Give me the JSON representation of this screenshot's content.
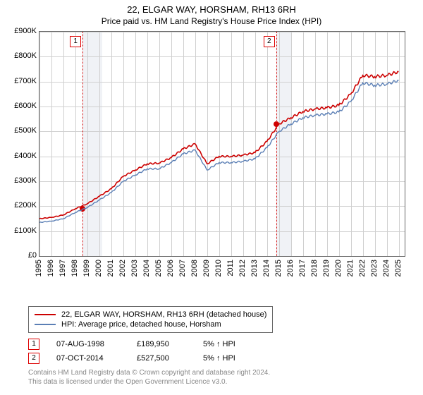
{
  "title_line1": "22, ELGAR WAY, HORSHAM, RH13 6RH",
  "title_line2": "Price paid vs. HM Land Registry's House Price Index (HPI)",
  "chart": {
    "type": "line",
    "x_years": [
      1995,
      1996,
      1997,
      1998,
      1999,
      2000,
      2001,
      2002,
      2003,
      2004,
      2005,
      2006,
      2007,
      2008,
      2009,
      2010,
      2011,
      2012,
      2013,
      2014,
      2015,
      2016,
      2017,
      2018,
      2019,
      2020,
      2021,
      2022,
      2023,
      2024,
      2025
    ],
    "x_min_year": 1995,
    "x_max_year": 2025.5,
    "ymin": 0,
    "ymax": 900000,
    "ytick_step": 100000,
    "ytick_labels": [
      "£0",
      "£100K",
      "£200K",
      "£300K",
      "£400K",
      "£500K",
      "£600K",
      "£700K",
      "£800K",
      "£900K"
    ],
    "grid_color": "#d0d0d0",
    "shade_color": "#f0f2f6",
    "border_color": "#666666",
    "shade_spans": [
      [
        1998.6,
        2000.25
      ],
      [
        2014.77,
        2016.0
      ]
    ],
    "flag_dash_color": "#d00000",
    "series": [
      {
        "name": "price_paid",
        "color": "#cc0000",
        "width": 1.6,
        "y_by_year": [
          150,
          155,
          165,
          190,
          210,
          240,
          270,
          320,
          345,
          370,
          373,
          395,
          430,
          450,
          370,
          400,
          400,
          405,
          415,
          460,
          530,
          555,
          580,
          590,
          595,
          605,
          650,
          725,
          720,
          725,
          740
        ]
      },
      {
        "name": "hpi",
        "color": "#5b7fb5",
        "width": 1.4,
        "y_by_year": [
          135,
          140,
          150,
          175,
          195,
          225,
          255,
          300,
          325,
          350,
          350,
          375,
          410,
          425,
          345,
          375,
          375,
          380,
          390,
          435,
          500,
          530,
          555,
          565,
          570,
          578,
          620,
          695,
          685,
          690,
          705
        ]
      }
    ],
    "transactions": [
      {
        "flag": "1",
        "year": 1998.6,
        "price_k": 190
      },
      {
        "flag": "2",
        "year": 2014.77,
        "price_k": 528
      }
    ],
    "marker_color": "#d00000"
  },
  "legend": {
    "row1_color": "#cc0000",
    "row1_label": "22, ELGAR WAY, HORSHAM, RH13 6RH (detached house)",
    "row2_color": "#5b7fb5",
    "row2_label": "HPI: Average price, detached house, Horsham"
  },
  "price_paid_rows": [
    {
      "flag": "1",
      "date": "07-AUG-1998",
      "price": "£189,950",
      "pct": "5% ↑ HPI"
    },
    {
      "flag": "2",
      "date": "07-OCT-2014",
      "price": "£527,500",
      "pct": "5% ↑ HPI"
    }
  ],
  "footnote_line1": "Contains HM Land Registry data © Crown copyright and database right 2024.",
  "footnote_line2": "This data is licensed under the Open Government Licence v3.0."
}
